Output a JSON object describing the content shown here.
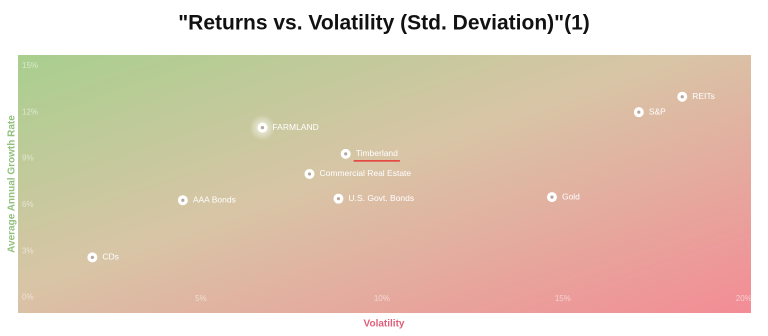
{
  "chart_data": {
    "type": "scatter",
    "title": "\"Returns vs. Volatility (Std. Deviation)\"(1)",
    "x_label": "Volatility",
    "y_label": "Average Annual Growth Rate",
    "labels": [
      "CDs",
      "AAA Bonds",
      "FARMLAND",
      "Timberland",
      "Commercial Real Estate",
      "U.S. Govt. Bonds",
      "Gold",
      "S&P",
      "REITs"
    ],
    "x": [
      2.0,
      4.5,
      6.7,
      9.0,
      8.0,
      8.8,
      14.7,
      17.1,
      18.3
    ],
    "values": [
      2.6,
      6.3,
      11.0,
      9.3,
      8.0,
      6.4,
      6.5,
      12.0,
      13.0
    ],
    "color": "#ffffff",
    "xlim": [
      0,
      20.2
    ],
    "ylim": [
      -1,
      15.7
    ],
    "xticks": [
      {
        "value": 5,
        "label": "5%"
      },
      {
        "value": 10,
        "label": "10%"
      },
      {
        "value": 15,
        "label": "15%"
      },
      {
        "value": 20,
        "label": "20%"
      }
    ],
    "yticks": [
      {
        "value": 0,
        "label": "0%"
      },
      {
        "value": 3,
        "label": "3%"
      },
      {
        "value": 6,
        "label": "6%"
      },
      {
        "value": 9,
        "label": "9%"
      },
      {
        "value": 12,
        "label": "12%"
      },
      {
        "value": 15,
        "label": "15%"
      }
    ]
  }
}
